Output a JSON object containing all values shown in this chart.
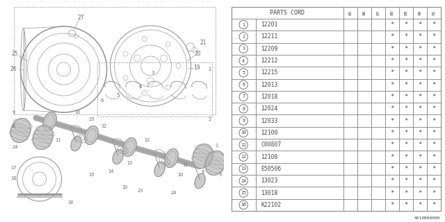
{
  "bg_color": "#ffffff",
  "table_header": "PARTS CORD",
  "col_headers": [
    "85",
    "86",
    "87",
    "88",
    "89",
    "90",
    "91"
  ],
  "rows": [
    {
      "num": "1",
      "code": "12201",
      "stars": [
        false,
        false,
        false,
        true,
        true,
        true,
        true
      ]
    },
    {
      "num": "2",
      "code": "12211",
      "stars": [
        false,
        false,
        false,
        true,
        true,
        true,
        true
      ]
    },
    {
      "num": "3",
      "code": "12209",
      "stars": [
        false,
        false,
        false,
        true,
        true,
        true,
        true
      ]
    },
    {
      "num": "4",
      "code": "12212",
      "stars": [
        false,
        false,
        false,
        true,
        true,
        true,
        true
      ]
    },
    {
      "num": "5",
      "code": "12215",
      "stars": [
        false,
        false,
        false,
        true,
        true,
        true,
        true
      ]
    },
    {
      "num": "6",
      "code": "12013",
      "stars": [
        false,
        false,
        false,
        true,
        true,
        true,
        true
      ]
    },
    {
      "num": "7",
      "code": "12018",
      "stars": [
        false,
        false,
        false,
        true,
        true,
        true,
        true
      ]
    },
    {
      "num": "8",
      "code": "12024",
      "stars": [
        false,
        false,
        false,
        true,
        true,
        true,
        true
      ]
    },
    {
      "num": "9",
      "code": "12033",
      "stars": [
        false,
        false,
        false,
        true,
        true,
        true,
        true
      ]
    },
    {
      "num": "10",
      "code": "12100",
      "stars": [
        false,
        false,
        false,
        true,
        true,
        true,
        true
      ]
    },
    {
      "num": "11",
      "code": "C00807",
      "stars": [
        false,
        false,
        false,
        true,
        true,
        true,
        true
      ]
    },
    {
      "num": "12",
      "code": "12108",
      "stars": [
        false,
        false,
        false,
        true,
        true,
        true,
        true
      ]
    },
    {
      "num": "13",
      "code": "E50506",
      "stars": [
        false,
        false,
        false,
        true,
        true,
        true,
        true
      ]
    },
    {
      "num": "14",
      "code": "13023",
      "stars": [
        false,
        false,
        false,
        true,
        true,
        true,
        true
      ]
    },
    {
      "num": "15",
      "code": "13018",
      "stars": [
        false,
        false,
        false,
        true,
        true,
        true,
        true
      ]
    },
    {
      "num": "16",
      "code": "K22102",
      "stars": [
        false,
        false,
        false,
        true,
        true,
        true,
        true
      ]
    }
  ],
  "footnote": "A010B00090",
  "lc": "#999999",
  "tc": "#666666",
  "lc2": "#888888",
  "tc2": "#444444"
}
